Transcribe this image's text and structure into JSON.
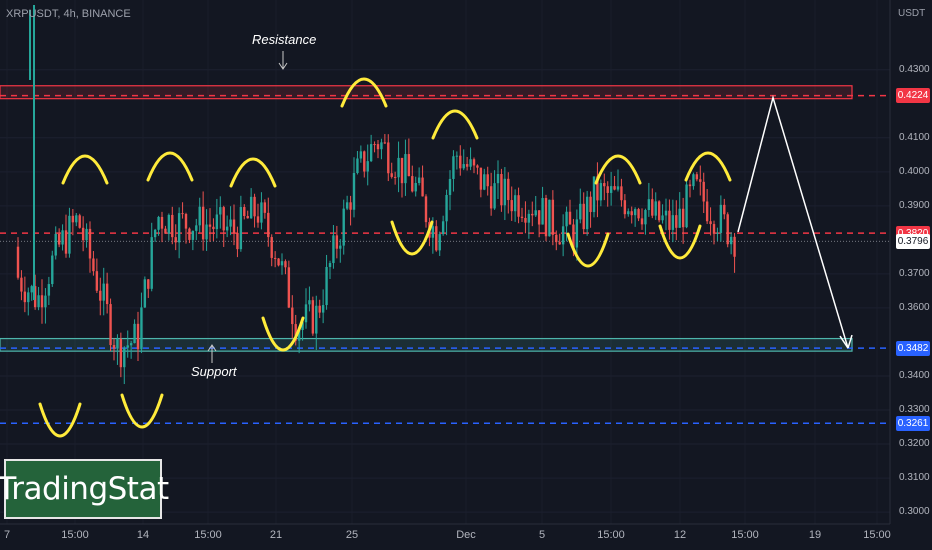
{
  "header": {
    "symbol": "XRPUSDT, 4h, BINANCE",
    "unit": "USDT"
  },
  "logo": {
    "text": "TradingStat"
  },
  "annotations": {
    "resistance": "Resistance",
    "support": "Support"
  },
  "colors": {
    "background": "#131722",
    "bull": "#26a69a",
    "bear": "#ef5350",
    "resistance": "#f23645",
    "support": "#2962ff",
    "marks": "#ffeb3b",
    "projection": "#ffffff"
  },
  "chart_data": {
    "type": "candlestick",
    "title": "",
    "x_ticks": [
      "7",
      "15:00",
      "14",
      "15:00",
      "21",
      "25",
      "Dec",
      "5",
      "15:00",
      "12",
      "15:00",
      "19",
      "15:00"
    ],
    "y_ticks": [
      "0.4300",
      "0.4100",
      "0.4000",
      "0.3900",
      "0.3700",
      "0.3600",
      "0.3400",
      "0.3300",
      "0.3200",
      "0.3100",
      "0.3000"
    ],
    "ylim": [
      0.2965,
      0.4505
    ],
    "price_labels": [
      {
        "value": 0.4224,
        "text": "0.4224",
        "color": "#f23645"
      },
      {
        "value": 0.382,
        "text": "0.3820",
        "color": "#f23645"
      },
      {
        "value": 0.3796,
        "text": "0.3796",
        "color": "last"
      },
      {
        "value": 0.3482,
        "text": "0.3482",
        "color": "#2962ff"
      },
      {
        "value": 0.3261,
        "text": "0.3261",
        "color": "#2962ff"
      }
    ],
    "horizontal_lines": [
      {
        "value": 0.4224,
        "style": "dashed",
        "color": "#f23645"
      },
      {
        "value": 0.382,
        "style": "dashed",
        "color": "#f23645"
      },
      {
        "value": 0.3796,
        "style": "dotted",
        "color": "#9598a1"
      },
      {
        "value": 0.3482,
        "style": "dashed",
        "color": "#2962ff"
      },
      {
        "value": 0.3261,
        "style": "dashed",
        "color": "#2962ff"
      }
    ],
    "zones": [
      {
        "name": "Resistance",
        "low": 0.4215,
        "high": 0.4253,
        "color": "#f23645"
      },
      {
        "name": "Support",
        "low": 0.3473,
        "high": 0.351,
        "color": "#4db6ac"
      }
    ],
    "price_path": [
      [
        0.378,
        0.36
      ],
      [
        0.395,
        0.33
      ],
      [
        0.4,
        0.355
      ],
      [
        0.392,
        0.38
      ],
      [
        0.38,
        0.355
      ],
      [
        0.36,
        0.336
      ],
      [
        0.352,
        0.35
      ],
      [
        0.392,
        0.382
      ],
      [
        0.398,
        0.372
      ],
      [
        0.385,
        0.385
      ],
      [
        0.388,
        0.38
      ],
      [
        0.39,
        0.375
      ],
      [
        0.396,
        0.382
      ],
      [
        0.385,
        0.368
      ],
      [
        0.362,
        0.348
      ],
      [
        0.352,
        0.364
      ],
      [
        0.376,
        0.382
      ],
      [
        0.386,
        0.412
      ],
      [
        0.414,
        0.405
      ],
      [
        0.408,
        0.398
      ],
      [
        0.404,
        0.386
      ],
      [
        0.375,
        0.388
      ],
      [
        0.4,
        0.411
      ],
      [
        0.405,
        0.392
      ],
      [
        0.396,
        0.392
      ],
      [
        0.394,
        0.39
      ],
      [
        0.392,
        0.388
      ],
      [
        0.386,
        0.382
      ],
      [
        0.376,
        0.388
      ],
      [
        0.393,
        0.395
      ],
      [
        0.394,
        0.391
      ],
      [
        0.392,
        0.39
      ],
      [
        0.389,
        0.384
      ],
      [
        0.38,
        0.388
      ],
      [
        0.396,
        0.394
      ],
      [
        0.39,
        0.385
      ],
      [
        0.382,
        0.38
      ]
    ]
  }
}
